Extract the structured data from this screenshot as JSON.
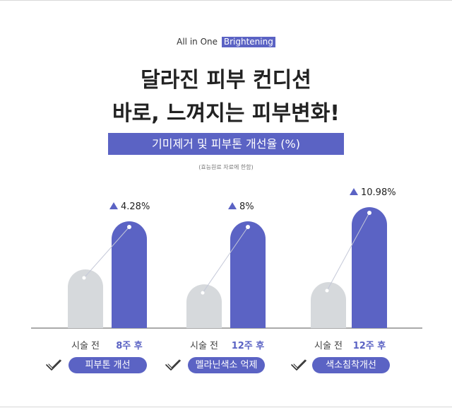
{
  "brand": {
    "text": "All in One",
    "tag": "Brightening"
  },
  "headline": {
    "line1": "달라진 피부 컨디션",
    "line2": "바로, 느껴지는 피부변화!"
  },
  "subtitle": "기미제거 및 피부톤 개선율 (%)",
  "note": "(효능원료 자료에 한함)",
  "colors": {
    "accent": "#5b63c4",
    "before_bar": "#d6d9dc",
    "axis": "#555555"
  },
  "icons": {
    "check": "check-icon",
    "up": "triangle-up-icon"
  },
  "chart_data": {
    "type": "bar",
    "bar_labels": [
      "시술 전",
      "8주 후",
      "시술 전",
      "12주 후",
      "시술 전",
      "12주 후"
    ],
    "groups": [
      {
        "category": "피부톤 개선",
        "before_label": "시술 전",
        "after_label": "8주 후",
        "after_value_label": "4.28%",
        "before_level": 0.55,
        "after_level": 1.0
      },
      {
        "category": "멜라닌색소 억제",
        "before_label": "시술 전",
        "after_label": "12주 후",
        "after_value_label": "8%",
        "before_level": 0.41,
        "after_level": 1.0
      },
      {
        "category": "색소침착개선",
        "before_label": "시술 전",
        "after_label": "12주 후",
        "after_value_label": "10.98%",
        "before_level": 0.38,
        "after_level": 1.0
      }
    ]
  }
}
